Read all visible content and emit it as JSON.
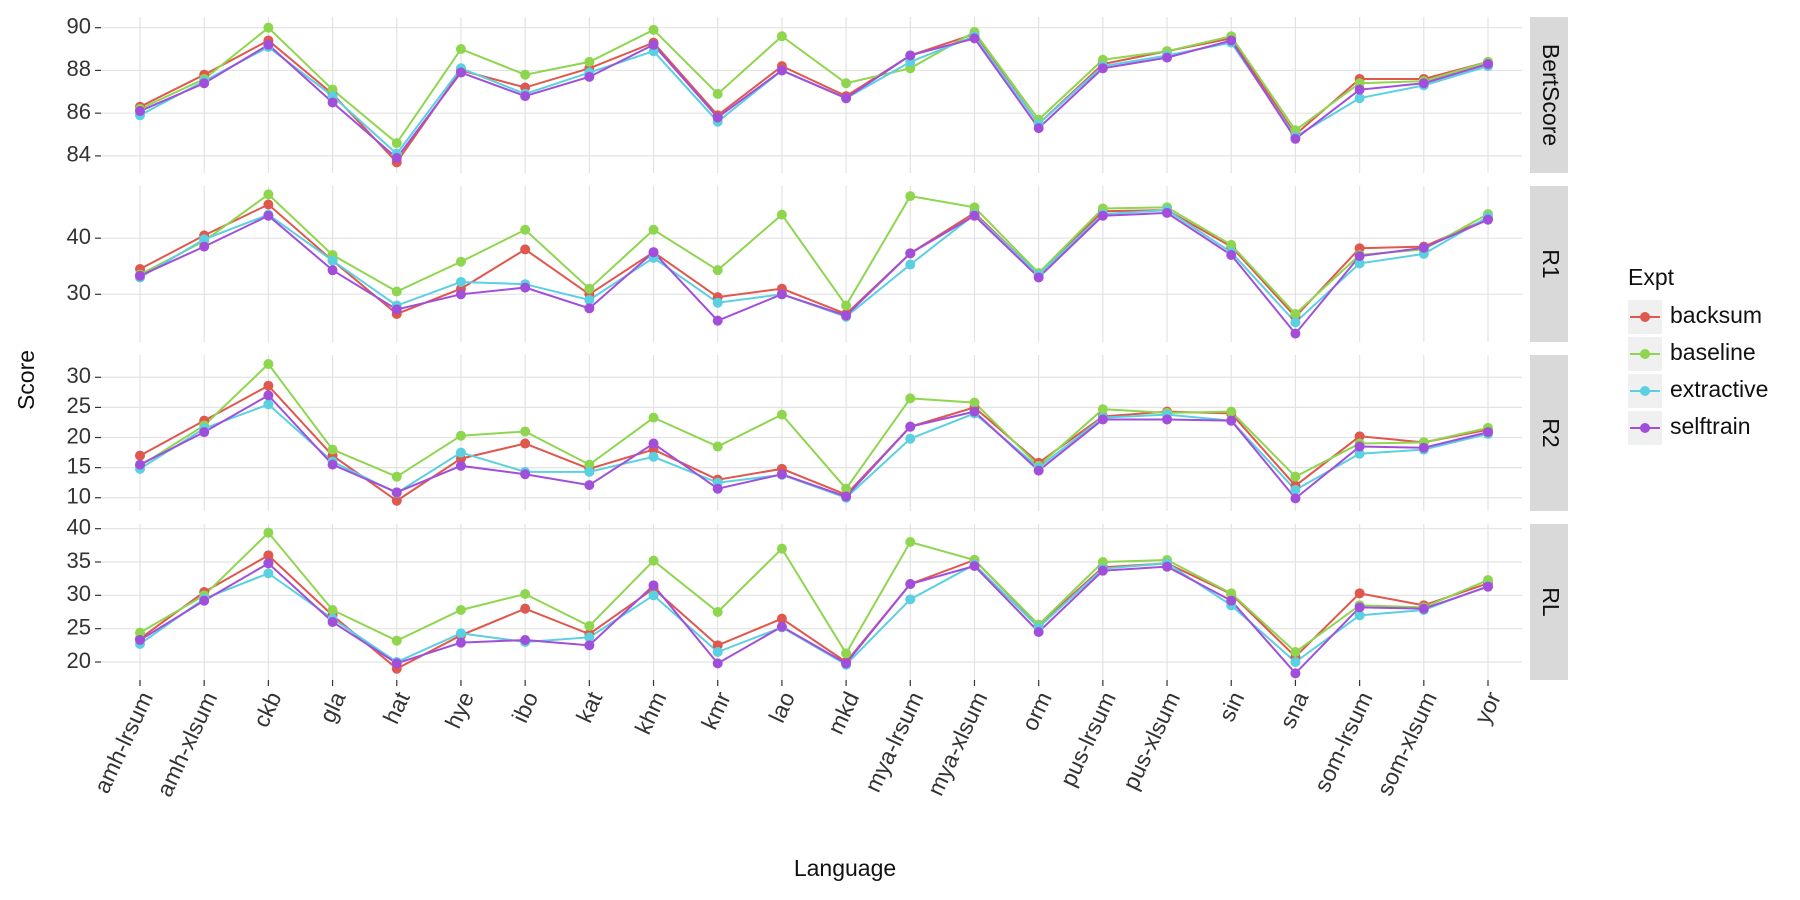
{
  "chart_data": {
    "type": "line",
    "xlabel": "Language",
    "ylabel": "Score",
    "legend_title": "Expt",
    "categories": [
      "amh-lrsum",
      "amh-xlsum",
      "ckb",
      "gla",
      "hat",
      "hye",
      "ibo",
      "kat",
      "khm",
      "kmr",
      "lao",
      "mkd",
      "mya-lrsum",
      "mya-xlsum",
      "orm",
      "pus-lrsum",
      "pus-xlsum",
      "sin",
      "sna",
      "som-lrsum",
      "som-xlsum",
      "yor"
    ],
    "series": [
      {
        "name": "backsum",
        "color": "#e0574d"
      },
      {
        "name": "baseline",
        "color": "#8fd64f"
      },
      {
        "name": "extractive",
        "color": "#5bd0e0"
      },
      {
        "name": "selftrain",
        "color": "#a14fdb"
      }
    ],
    "grid": true,
    "facets": [
      {
        "strip": "BertScore",
        "ylim": [
          83.2,
          90.5
        ],
        "yticks": [
          84,
          86,
          88,
          90
        ],
        "series": [
          {
            "values": [
              86.3,
              87.8,
              89.4,
              86.9,
              83.7,
              88.0,
              87.2,
              88.1,
              89.3,
              85.9,
              88.2,
              86.8,
              88.7,
              89.7,
              85.5,
              88.3,
              88.9,
              89.5,
              85.0,
              87.6,
              87.6,
              88.4
            ]
          },
          {
            "values": [
              86.2,
              87.6,
              90.0,
              87.1,
              84.6,
              89.0,
              87.8,
              88.4,
              89.9,
              86.9,
              89.6,
              87.4,
              88.1,
              89.8,
              85.7,
              88.5,
              88.9,
              89.6,
              85.2,
              87.4,
              87.5,
              88.4
            ]
          },
          {
            "values": [
              85.9,
              87.5,
              89.1,
              86.8,
              84.1,
              88.1,
              86.9,
              87.9,
              88.9,
              85.6,
              88.0,
              86.7,
              88.4,
              89.6,
              85.5,
              88.2,
              88.7,
              89.3,
              84.9,
              86.7,
              87.3,
              88.2
            ]
          },
          {
            "values": [
              86.1,
              87.4,
              89.2,
              86.5,
              83.9,
              87.9,
              86.8,
              87.7,
              89.2,
              85.8,
              88.0,
              86.7,
              88.7,
              89.5,
              85.3,
              88.1,
              88.6,
              89.4,
              84.8,
              87.1,
              87.4,
              88.3
            ]
          }
        ]
      },
      {
        "strip": "R1",
        "ylim": [
          21.5,
          49.3
        ],
        "yticks": [
          30,
          40
        ],
        "series": [
          {
            "values": [
              34.5,
              40.5,
              46.0,
              36.0,
              26.5,
              31.0,
              38.0,
              30.0,
              37.5,
              29.5,
              31.0,
              26.5,
              37.3,
              44.5,
              33.5,
              44.8,
              45.0,
              38.5,
              26.0,
              38.2,
              38.5,
              43.5
            ]
          },
          {
            "values": [
              33.5,
              39.5,
              47.8,
              37.0,
              30.5,
              35.8,
              41.5,
              31.0,
              41.5,
              34.3,
              44.2,
              28.0,
              47.5,
              45.5,
              33.8,
              45.3,
              45.5,
              38.8,
              26.5,
              37.0,
              38.0,
              44.3
            ]
          },
          {
            "values": [
              33.0,
              39.8,
              44.2,
              36.0,
              28.0,
              32.2,
              31.8,
              29.0,
              36.5,
              28.5,
              30.0,
              26.0,
              35.3,
              44.2,
              33.5,
              44.3,
              45.0,
              37.5,
              25.0,
              35.5,
              37.2,
              43.8
            ]
          },
          {
            "values": [
              33.3,
              38.5,
              44.0,
              34.3,
              27.3,
              30.0,
              31.2,
              27.5,
              37.5,
              25.3,
              30.0,
              26.2,
              37.3,
              44.0,
              33.0,
              44.0,
              44.5,
              37.0,
              23.0,
              36.8,
              38.3,
              43.3
            ]
          }
        ]
      },
      {
        "strip": "R2",
        "ylim": [
          7.8,
          33.7
        ],
        "yticks": [
          10,
          15,
          20,
          25,
          30
        ],
        "series": [
          {
            "values": [
              17.0,
              22.8,
              28.6,
              17.0,
              9.5,
              16.5,
              19.0,
              14.8,
              18.0,
              13.0,
              14.8,
              10.5,
              21.8,
              25.0,
              15.8,
              23.5,
              24.3,
              24.0,
              12.0,
              20.2,
              19.2,
              21.3
            ]
          },
          {
            "values": [
              15.3,
              22.0,
              32.2,
              18.0,
              13.5,
              20.3,
              21.0,
              15.5,
              23.3,
              18.5,
              23.8,
              11.5,
              26.5,
              25.8,
              15.3,
              24.7,
              24.1,
              24.3,
              13.5,
              19.0,
              19.2,
              21.6
            ]
          },
          {
            "values": [
              14.8,
              21.5,
              25.5,
              16.0,
              10.8,
              17.5,
              14.3,
              14.3,
              16.8,
              12.5,
              13.8,
              10.0,
              19.8,
              24.0,
              15.0,
              23.3,
              23.8,
              22.8,
              11.3,
              17.3,
              18.0,
              20.6
            ]
          },
          {
            "values": [
              15.5,
              20.9,
              27.0,
              15.5,
              10.9,
              15.3,
              13.9,
              12.1,
              19.0,
              11.5,
              13.9,
              10.2,
              21.8,
              24.3,
              14.5,
              23.0,
              23.0,
              22.8,
              9.9,
              18.5,
              18.3,
              20.9
            ]
          }
        ]
      },
      {
        "strip": "RL",
        "ylim": [
          17.3,
          40.7
        ],
        "yticks": [
          20,
          25,
          30,
          35,
          40
        ],
        "series": [
          {
            "values": [
              23.5,
              30.5,
              36.0,
              27.0,
              19.0,
              24.0,
              28.0,
              24.2,
              31.0,
              22.5,
              26.5,
              20.0,
              31.7,
              35.3,
              25.5,
              34.2,
              34.8,
              30.2,
              20.8,
              30.3,
              28.5,
              31.8
            ]
          },
          {
            "values": [
              24.4,
              30.0,
              39.4,
              27.8,
              23.2,
              27.8,
              30.2,
              25.4,
              35.2,
              27.5,
              37.0,
              21.3,
              38.0,
              35.3,
              25.6,
              35.0,
              35.3,
              30.3,
              21.5,
              28.5,
              28.2,
              32.3
            ]
          },
          {
            "values": [
              22.7,
              29.5,
              33.3,
              26.5,
              20.0,
              24.3,
              23.0,
              23.7,
              30.0,
              21.5,
              25.2,
              19.6,
              29.4,
              34.6,
              25.2,
              34.0,
              34.8,
              28.5,
              20.0,
              27.0,
              27.8,
              31.4
            ]
          },
          {
            "values": [
              23.3,
              29.2,
              34.8,
              26.0,
              19.8,
              22.9,
              23.3,
              22.5,
              31.5,
              19.8,
              25.3,
              19.8,
              31.7,
              34.4,
              24.5,
              33.7,
              34.3,
              29.2,
              18.3,
              28.2,
              28.0,
              31.3
            ]
          }
        ]
      }
    ]
  }
}
